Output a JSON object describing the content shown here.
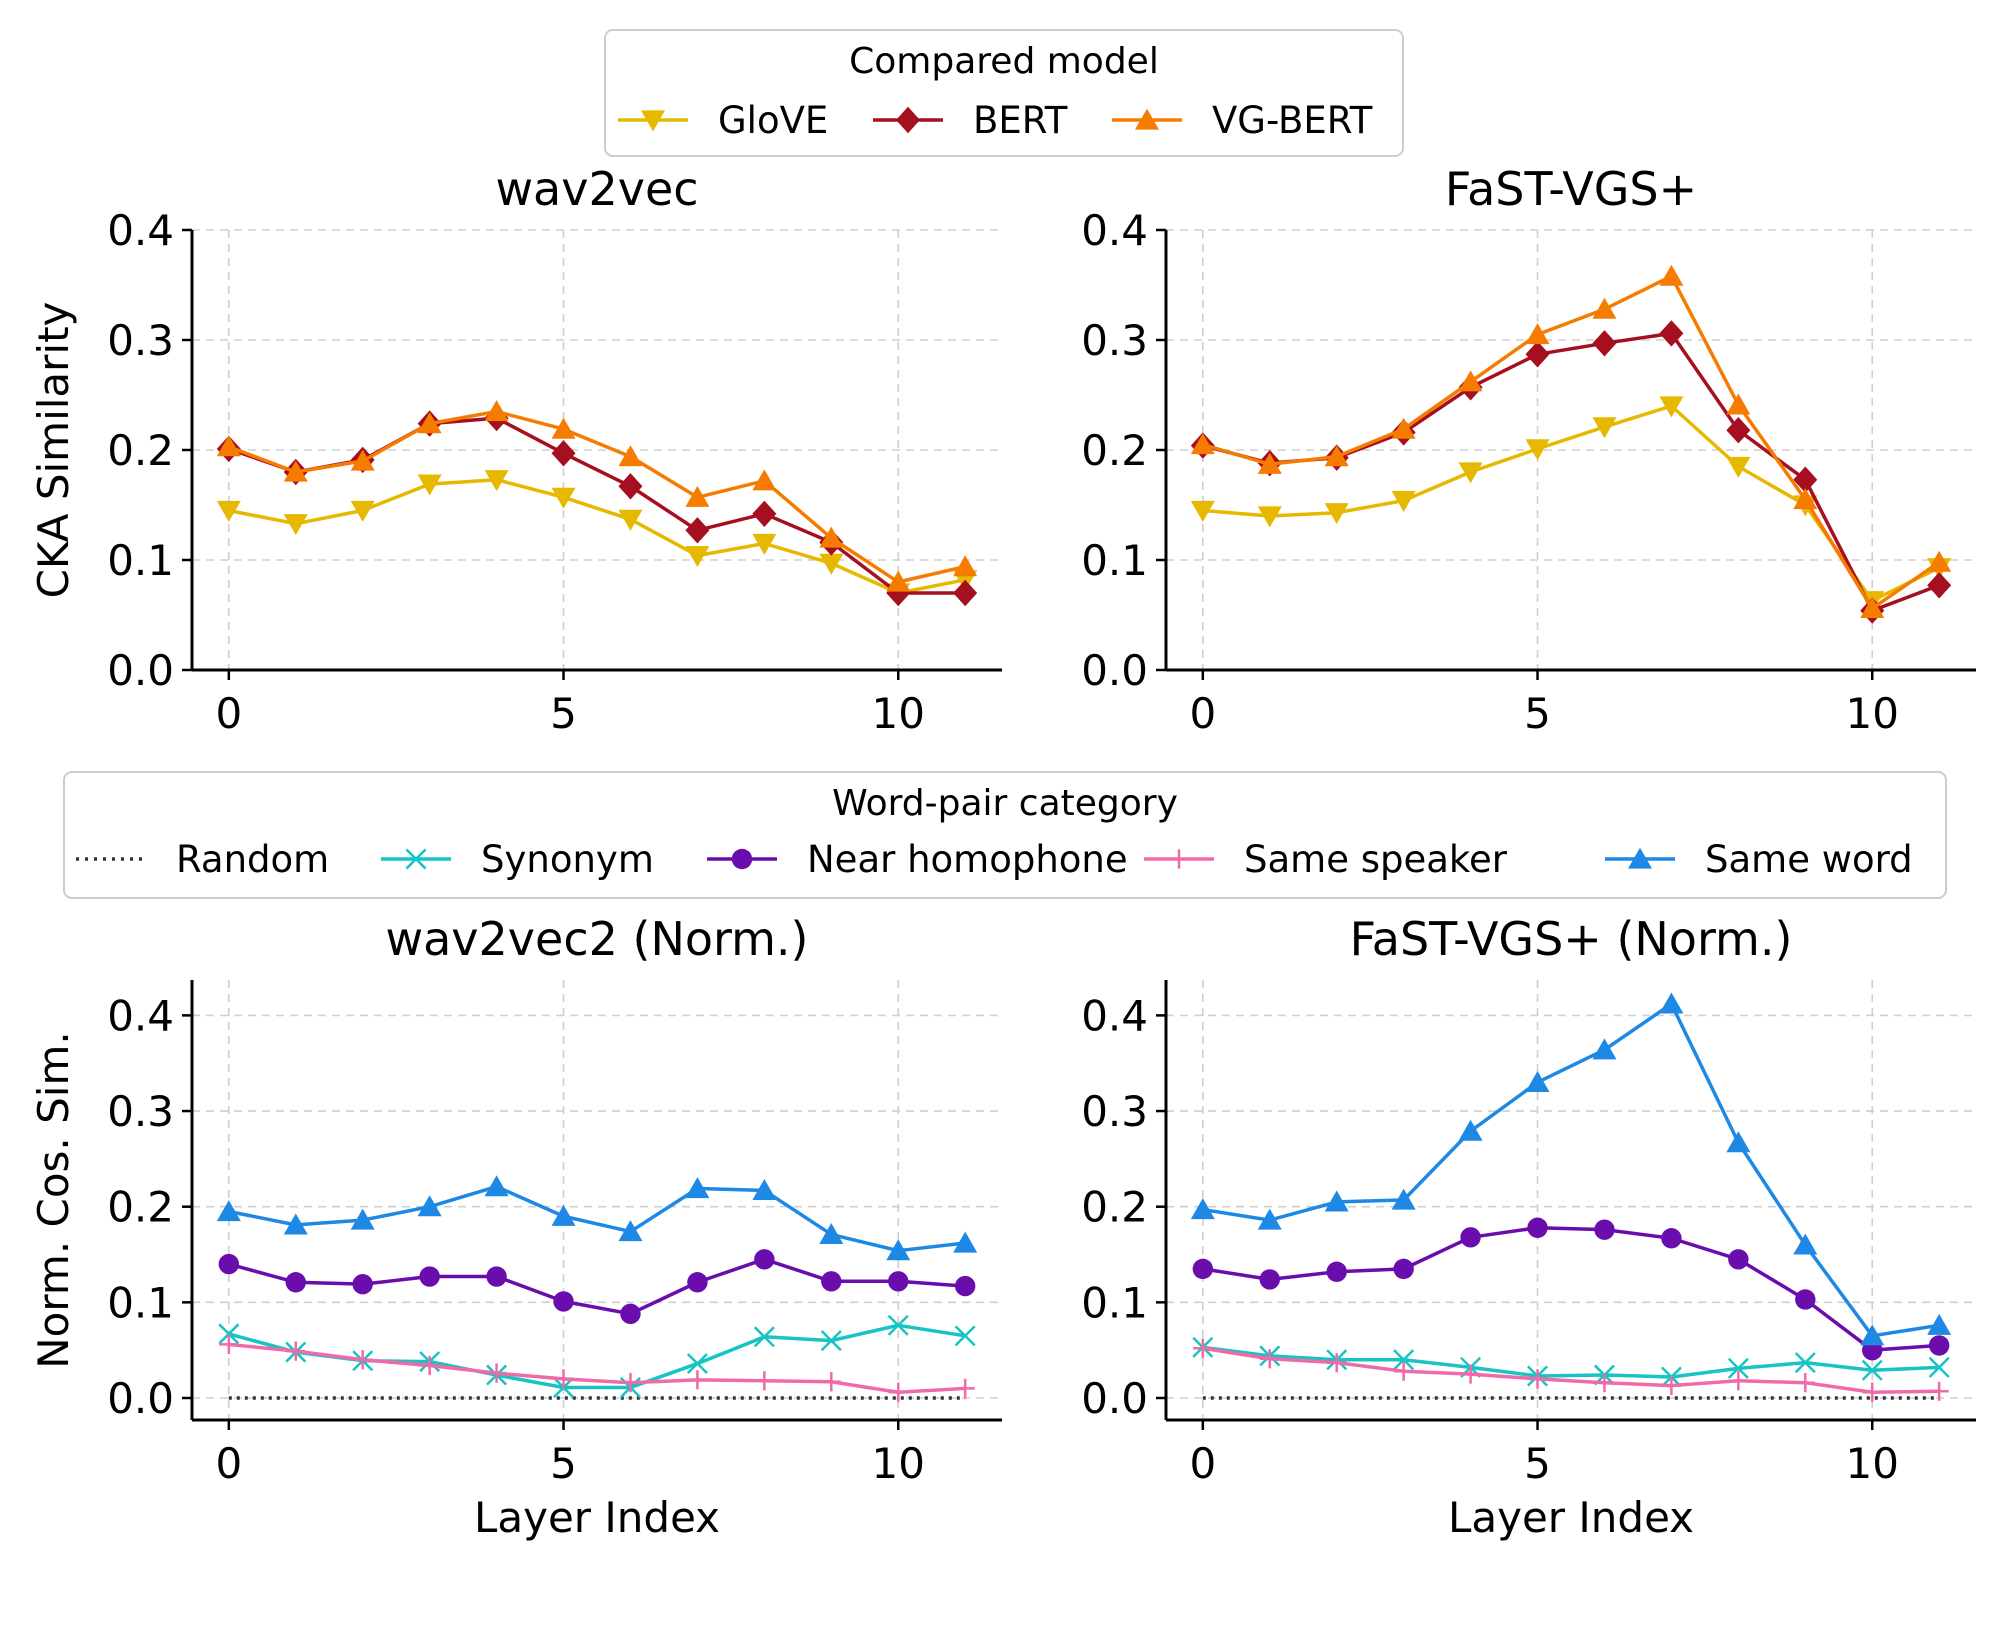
{
  "legends": {
    "top": {
      "title": "Compared model",
      "entries": [
        {
          "label": "GloVE",
          "color": "#e6b800",
          "marker": "triangle-down"
        },
        {
          "label": "BERT",
          "color": "#a50f20",
          "marker": "diamond"
        },
        {
          "label": "VG-BERT",
          "color": "#f57c00",
          "marker": "triangle-up"
        }
      ]
    },
    "bottom": {
      "title": "Word-pair category",
      "entries": [
        {
          "label": "Random",
          "color": "#333333",
          "marker": "dotted"
        },
        {
          "label": "Synonym",
          "color": "#17c3c3",
          "marker": "x"
        },
        {
          "label": "Near homophone",
          "color": "#6a0dad",
          "marker": "circle"
        },
        {
          "label": "Same speaker",
          "color": "#ef6aa9",
          "marker": "plus"
        },
        {
          "label": "Same word",
          "color": "#1e88e5",
          "marker": "triangle-up"
        }
      ]
    }
  },
  "chart_data": [
    {
      "type": "line",
      "title": "wav2vec",
      "xlabel": "",
      "ylabel": "CKA Similarity",
      "xlim": [
        -0.55,
        11.55
      ],
      "ylim": [
        0,
        0.4
      ],
      "xticks": [
        "0",
        "5",
        "10"
      ],
      "yticks": [
        "0.0",
        "0.1",
        "0.2",
        "0.3",
        "0.4"
      ],
      "grid": true,
      "x": [
        0,
        1,
        2,
        3,
        4,
        5,
        6,
        7,
        8,
        9,
        10,
        11
      ],
      "series": [
        {
          "name": "GloVE",
          "color": "#e6b800",
          "marker": "triangle-down",
          "values": [
            0.145,
            0.133,
            0.145,
            0.169,
            0.173,
            0.157,
            0.137,
            0.104,
            0.115,
            0.097,
            0.07,
            0.082
          ]
        },
        {
          "name": "BERT",
          "color": "#a50f20",
          "marker": "diamond",
          "values": [
            0.201,
            0.18,
            0.191,
            0.224,
            0.229,
            0.197,
            0.167,
            0.127,
            0.142,
            0.116,
            0.07,
            0.07
          ]
        },
        {
          "name": "VG-BERT",
          "color": "#f57c00",
          "marker": "triangle-up",
          "values": [
            0.203,
            0.18,
            0.19,
            0.224,
            0.235,
            0.219,
            0.194,
            0.157,
            0.172,
            0.12,
            0.08,
            0.094
          ]
        }
      ]
    },
    {
      "type": "line",
      "title": "FaST-VGS+",
      "xlabel": "",
      "ylabel": "",
      "xlim": [
        -0.55,
        11.55
      ],
      "ylim": [
        0,
        0.4
      ],
      "xticks": [
        "0",
        "5",
        "10"
      ],
      "yticks": [
        "0.0",
        "0.1",
        "0.2",
        "0.3",
        "0.4"
      ],
      "grid": true,
      "x": [
        0,
        1,
        2,
        3,
        4,
        5,
        6,
        7,
        8,
        9,
        10,
        11
      ],
      "series": [
        {
          "name": "GloVE",
          "color": "#e6b800",
          "marker": "triangle-down",
          "values": [
            0.145,
            0.14,
            0.143,
            0.154,
            0.18,
            0.201,
            0.221,
            0.24,
            0.185,
            0.15,
            0.063,
            0.093
          ]
        },
        {
          "name": "BERT",
          "color": "#a50f20",
          "marker": "diamond",
          "values": [
            0.204,
            0.188,
            0.193,
            0.216,
            0.257,
            0.287,
            0.297,
            0.306,
            0.218,
            0.173,
            0.054,
            0.077
          ]
        },
        {
          "name": "VG-BERT",
          "color": "#f57c00",
          "marker": "triangle-up",
          "values": [
            0.205,
            0.187,
            0.194,
            0.219,
            0.262,
            0.305,
            0.328,
            0.358,
            0.241,
            0.155,
            0.056,
            0.098
          ]
        }
      ]
    },
    {
      "type": "line",
      "title": "wav2vec2 (Norm.)",
      "xlabel": "Layer Index",
      "ylabel": "Norm. Cos. Sim.",
      "xlim": [
        -0.55,
        11.55
      ],
      "ylim": [
        -0.023,
        0.437
      ],
      "xticks": [
        "0",
        "5",
        "10"
      ],
      "yticks": [
        "0.0",
        "0.1",
        "0.2",
        "0.3",
        "0.4"
      ],
      "grid": true,
      "x": [
        0,
        1,
        2,
        3,
        4,
        5,
        6,
        7,
        8,
        9,
        10,
        11
      ],
      "series": [
        {
          "name": "Random",
          "color": "#333333",
          "marker": "dotted",
          "values": [
            0.0,
            0.0,
            0.0,
            0.0,
            0.0,
            0.0,
            0.0,
            0.0,
            0.0,
            0.0,
            0.0,
            0.0
          ]
        },
        {
          "name": "Synonym",
          "color": "#17c3c3",
          "marker": "x",
          "values": [
            0.067,
            0.048,
            0.039,
            0.038,
            0.024,
            0.011,
            0.011,
            0.036,
            0.064,
            0.06,
            0.076,
            0.065
          ]
        },
        {
          "name": "Near homophone",
          "color": "#6a0dad",
          "marker": "circle",
          "values": [
            0.14,
            0.121,
            0.119,
            0.127,
            0.127,
            0.101,
            0.088,
            0.121,
            0.145,
            0.122,
            0.122,
            0.117
          ]
        },
        {
          "name": "Same speaker",
          "color": "#ef6aa9",
          "marker": "plus",
          "values": [
            0.056,
            0.049,
            0.04,
            0.034,
            0.026,
            0.02,
            0.016,
            0.019,
            0.018,
            0.017,
            0.006,
            0.01
          ]
        },
        {
          "name": "Same word",
          "color": "#1e88e5",
          "marker": "triangle-up",
          "values": [
            0.195,
            0.181,
            0.186,
            0.2,
            0.221,
            0.19,
            0.174,
            0.219,
            0.217,
            0.171,
            0.154,
            0.162
          ]
        }
      ]
    },
    {
      "type": "line",
      "title": "FaST-VGS+ (Norm.)",
      "xlabel": "Layer Index",
      "ylabel": "",
      "xlim": [
        -0.55,
        11.55
      ],
      "ylim": [
        -0.023,
        0.437
      ],
      "xticks": [
        "0",
        "5",
        "10"
      ],
      "yticks": [
        "0.0",
        "0.1",
        "0.2",
        "0.3",
        "0.4"
      ],
      "grid": true,
      "x": [
        0,
        1,
        2,
        3,
        4,
        5,
        6,
        7,
        8,
        9,
        10,
        11
      ],
      "series": [
        {
          "name": "Random",
          "color": "#333333",
          "marker": "dotted",
          "values": [
            0.0,
            0.0,
            0.0,
            0.0,
            0.0,
            0.0,
            0.0,
            0.0,
            0.0,
            0.0,
            0.0,
            0.0
          ]
        },
        {
          "name": "Synonym",
          "color": "#17c3c3",
          "marker": "x",
          "values": [
            0.053,
            0.044,
            0.04,
            0.04,
            0.032,
            0.023,
            0.024,
            0.022,
            0.031,
            0.037,
            0.029,
            0.032
          ]
        },
        {
          "name": "Near homophone",
          "color": "#6a0dad",
          "marker": "circle",
          "values": [
            0.135,
            0.124,
            0.132,
            0.135,
            0.168,
            0.178,
            0.176,
            0.167,
            0.145,
            0.103,
            0.05,
            0.055
          ]
        },
        {
          "name": "Same speaker",
          "color": "#ef6aa9",
          "marker": "plus",
          "values": [
            0.052,
            0.041,
            0.037,
            0.028,
            0.025,
            0.02,
            0.016,
            0.013,
            0.018,
            0.016,
            0.006,
            0.007
          ]
        },
        {
          "name": "Same word",
          "color": "#1e88e5",
          "marker": "triangle-up",
          "values": [
            0.197,
            0.186,
            0.205,
            0.207,
            0.279,
            0.33,
            0.364,
            0.412,
            0.267,
            0.16,
            0.065,
            0.076
          ]
        }
      ]
    }
  ]
}
